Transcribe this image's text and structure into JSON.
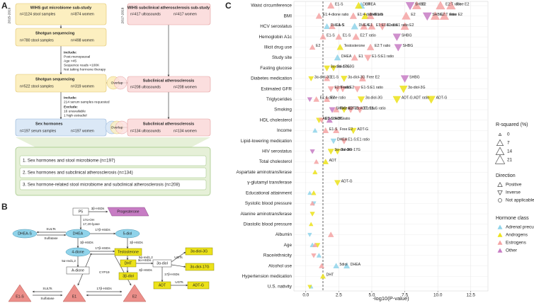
{
  "panel_a": {
    "label": "A",
    "periods": [
      "2015-2019",
      "2017-2019"
    ],
    "gut": {
      "title": "WIHS gut microbiome sub-study",
      "samples": "n=1124 stool samples",
      "women": "n=874 women"
    },
    "athero": {
      "title": "WIHS subclinical atherosclerosis sub-study",
      "samples": "n=417 ultrasounds",
      "women": "n=417 women"
    },
    "seq1": {
      "title": "Shotgun sequencing",
      "samples": "n=780 stool samples",
      "women": "n=498 women"
    },
    "criteria1": [
      "Include:",
      "Post-menopausal",
      "Age >45",
      "Sequence reads >100K",
      "Not taking hormone therapy"
    ],
    "seq2": {
      "title": "Shotgun sequencing",
      "samples": "n=522 stool samples",
      "women": "n=319 women"
    },
    "athero2": {
      "title": "Subclinical atherosclerosis",
      "samples": "n=208 ultrasounds",
      "women": "n=208 women"
    },
    "criteria2": [
      "Include:",
      "214 serum samples requested",
      "Exclude:",
      "16 unavailable",
      "1 high estradiol"
    ],
    "hormones": {
      "title": "Sex hormones",
      "samples": "n=197 serum samples",
      "women": "n=197 women"
    },
    "athero3": {
      "title": "Subclinical atherosclerosis",
      "samples": "n=134 ultrasounds",
      "women": "n=134 women"
    },
    "overlap": "Overlap",
    "analyses": [
      "1. Sex hormones and stool microbiome (n=197)",
      "2. Sex hormones and subclinical atherosclerosis (n=134)",
      "3. Sex hormone-related stool microbiome and subclinical atherosclerosis (n=208)"
    ]
  },
  "panel_b": {
    "label": "B",
    "nodes": [
      "P5",
      "Progesterone",
      "DHEA-S",
      "DHEA",
      "5-diol",
      "4-dione",
      "Testosterone",
      "A-dione",
      "DHT",
      "3α-diol",
      "3β-diol",
      "3α-diol-3G",
      "3α-diol-17G",
      "ADT",
      "ADT-G",
      "E1-S",
      "E1",
      "E2"
    ],
    "enzymes": [
      "3β-HSDs",
      "17α-OH",
      "17,20-lyase",
      "SULTs",
      "Sulfatase",
      "17β-HSDs",
      "3β-HSDs",
      "3β-HSDs",
      "17β-HSDs",
      "5α-red1,2",
      "5α-red1,2",
      "3α-HSDs",
      "3β-HSDs",
      "UGTs",
      "17β-HSDs",
      "UGTs",
      "CYP19",
      "SULTs",
      "Sulfatase",
      "17β-HSDs"
    ]
  },
  "chart_data": {
    "type": "scatter",
    "panel_label": "C",
    "categories": [
      "Waist circumference",
      "BMI",
      "HCV serostatus",
      "Hemoglobin A1c",
      "Illicit drug use",
      "Study site",
      "Fasting glucose",
      "Diabetes medication",
      "Estimated GFR",
      "Triglycerides",
      "Smoking",
      "HDL cholesterol",
      "Income",
      "Lipid-lowering medication",
      "HIV serostatus",
      "Total cholesterol",
      "Aspartate aminotransferase",
      "γ-glutamyl transferase",
      "Educational attainment",
      "Systolic blood pressure",
      "Alanine aminotransferase",
      "Diastolic blood pressure",
      "Albumin",
      "Age",
      "Race/ethnicity",
      "Alcohol use",
      "Hypertension medication",
      "U.S. nativity"
    ],
    "xlabel": "-log10(P-value)",
    "xlim": [
      -0.9,
      13.8
    ],
    "xticks": [
      {
        "value": 0,
        "label": "0.0"
      },
      2.5,
      {
        "value": 5,
        "label": "5.0"
      },
      7.5,
      {
        "value": 10,
        "label": "10.0"
      },
      12.5
    ],
    "reference_line": 1.3,
    "grid": true,
    "size_legend": {
      "title": "R-squared (%)",
      "values": [
        0,
        7,
        14,
        21
      ]
    },
    "direction_legend": {
      "title": "Direction",
      "names": [
        "Positive",
        "Inverse",
        "Not applicable"
      ]
    },
    "legend_title": "Hormone class",
    "series": [
      {
        "name": "Adrenal precursors",
        "color": "#8fd3ea",
        "y": [
          "Waist circumference",
          "HCV serostatus",
          "HCV serostatus",
          "Study site",
          "Lipid-lowering medication",
          "Alcohol use",
          "Alcohol use",
          "Age",
          "Albumin",
          "Race/ethnicity",
          "U.S. nativity",
          "Systolic blood pressure",
          "Educational attainment",
          "Income"
        ],
        "x": [
          4.2,
          1.6,
          3.7,
          2.4,
          2.1,
          2.3,
          3.1,
          0.5,
          0.3,
          1.0,
          0.4,
          0.6,
          0.3,
          0.7
        ],
        "sizes": [
          9,
          5,
          8,
          6,
          4,
          4,
          5,
          2,
          1,
          2,
          1,
          2,
          1,
          2
        ],
        "directions": [
          "Positive",
          "Positive",
          "Positive",
          "Positive",
          "Inverse",
          "Positive",
          "Positive",
          "Positive",
          "Inverse",
          "Positive",
          "Positive",
          "Inverse",
          "Positive",
          "Positive"
        ],
        "labels": [
          "DHEA",
          "DHEA-S",
          "DHEA",
          "DHEA",
          "DHEA",
          "5diol",
          "DHEA",
          null,
          null,
          null,
          null,
          null,
          null,
          null
        ]
      },
      {
        "name": "Androgens",
        "color": "#ece21a",
        "y": [
          "Waist circumference",
          "BMI",
          "Illicit drug use",
          "Fasting glucose",
          "Fasting glucose",
          "Diabetes medication",
          "Diabetes medication",
          "Estimated GFR",
          "Triglycerides",
          "Triglycerides",
          "Triglycerides",
          "Smoking",
          "HDL cholesterol",
          "Income",
          "HIV serostatus",
          "HIV serostatus",
          "Total cholesterol",
          "γ-glutamyl transferase",
          "Hypertension medication",
          "Educational attainment",
          "Alanine aminotransferase",
          "Diastolic blood pressure",
          "Age",
          "Aspartate aminotransferase",
          "U.S. nativity"
        ],
        "x": [
          4.0,
          4.5,
          2.6,
          1.6,
          2.1,
          0.4,
          2.9,
          7.4,
          4.2,
          6.9,
          9.5,
          2.9,
          1.0,
          3.6,
          1.9,
          2.4,
          1.5,
          2.4,
          1.3,
          0.6,
          0.5,
          0.4,
          0.9,
          0.7,
          0.3
        ],
        "sizes": [
          9,
          9,
          6,
          5,
          5,
          3,
          6,
          12,
          8,
          12,
          14,
          5,
          4,
          6,
          5,
          5,
          4,
          5,
          3,
          2,
          2,
          1,
          2,
          2,
          1
        ],
        "directions": [
          "Positive",
          "Positive",
          "Positive",
          "Inverse",
          "Inverse",
          "Inverse",
          "Inverse",
          "Inverse",
          "Inverse",
          "Inverse",
          "Inverse",
          "Inverse",
          "Inverse",
          "Inverse",
          "Inverse",
          "Inverse",
          "Positive",
          "Inverse",
          "Positive",
          "Positive",
          "Inverse",
          "Positive",
          "Inverse",
          "Positive",
          "Inverse"
        ],
        "labels": [
          "DHT",
          "DHT",
          "Testosterone",
          "3α-diol-17G",
          "3α-diol-3G",
          "3α-diol-3G",
          "3α-diol-3G",
          "3α-diol-3G",
          "3α-diol-3G",
          "ADT-G:ADT ratio",
          "ADT-G",
          "ADT-G:ADT ratio",
          "ADT-G:ADT ratio",
          "ADT-G",
          "3α-diol-3G",
          "3α-diol-17G",
          "ADT",
          "ADT-G",
          "DHT",
          null,
          null,
          null,
          null,
          null,
          null
        ]
      },
      {
        "name": "Estrogens",
        "color": "#f4a3a3",
        "y": [
          "Waist circumference",
          "Waist circumference",
          "Waist circumference",
          "Waist circumference",
          "BMI",
          "BMI",
          "BMI",
          "BMI",
          "BMI",
          "BMI",
          "HCV serostatus",
          "HCV serostatus",
          "HCV serostatus",
          "HCV serostatus",
          "HCV serostatus",
          "Hemoglobin A1c",
          "Hemoglobin A1c",
          "Hemoglobin A1c",
          "Illicit drug use",
          "Illicit drug use",
          "Study site",
          "Study site",
          "Diabetes medication",
          "Diabetes medication",
          "Estimated GFR",
          "Estimated GFR",
          "Estimated GFR",
          "Estimated GFR",
          "Triglycerides",
          "Triglycerides",
          "Smoking",
          "Smoking",
          "Smoking",
          "HDL cholesterol",
          "Income",
          "Income",
          "Lipid-lowering medication",
          "Total cholesterol",
          "Systolic blood pressure",
          "Age",
          "Albumin",
          "Race/ethnicity",
          "Alcohol use"
        ],
        "x": [
          1.9,
          8.4,
          10.2,
          11.0,
          1.0,
          3.6,
          4.9,
          7.6,
          9.8,
          10.5,
          2.0,
          4.4,
          5.0,
          5.8,
          7.5,
          1.3,
          2.5,
          3.8,
          0.5,
          4.9,
          3.7,
          4.7,
          1.6,
          4.3,
          1.9,
          2.4,
          2.8,
          3.9,
          0.8,
          1.6,
          2.3,
          3.4,
          4.1,
          1.2,
          1.5,
          2.3,
          2.9,
          0.8,
          0.5,
          0.7,
          1.9,
          0.6,
          1.2
        ],
        "sizes": [
          8,
          16,
          18,
          18,
          6,
          8,
          10,
          15,
          17,
          17,
          6,
          9,
          9,
          10,
          13,
          5,
          6,
          8,
          4,
          8,
          7,
          8,
          5,
          7,
          5,
          5,
          6,
          7,
          4,
          5,
          5,
          6,
          7,
          4,
          5,
          5,
          6,
          2,
          2,
          2,
          4,
          2,
          3
        ],
        "directions": [
          "Positive",
          "Positive",
          "Positive",
          "Positive",
          "Positive",
          "Positive",
          "Positive",
          "Positive",
          "Positive",
          "Positive",
          "Positive",
          "Positive",
          "Positive",
          "Inverse",
          "Positive",
          "Positive",
          "Positive",
          "Positive",
          "Positive",
          "Positive",
          "Positive",
          "Inverse",
          "Positive",
          "Positive",
          "Inverse",
          "Inverse",
          "Inverse",
          "Inverse",
          "Positive",
          "Positive",
          "Positive",
          "Inverse",
          "Inverse",
          "Inverse",
          "Positive",
          "Positive",
          "Inverse",
          "Positive",
          "Positive",
          "Positive",
          "Positive",
          "Inverse",
          "Positive"
        ],
        "labels": [
          "E1-S",
          "E2",
          "E2:T ratio",
          "Free E2",
          "E1:4-dione ratio",
          "E1:4-dione ratio",
          "E1-S",
          "E2",
          "E2:T ratio",
          "Free E2",
          "E1-S",
          "E1",
          "E1:E1-S ratio",
          "E1-S:E1 ratio",
          "E2",
          "E1-S",
          "E1-S",
          "E2:T ratio",
          "E2",
          "E2:T ratio",
          "E1",
          "E1-S:E1 ratio",
          "E1-S",
          "Free E2",
          "E2:T ratio",
          "Free E2",
          "E1",
          "E1-S:E1 ratio",
          "E1:4-dione ratio",
          "E2",
          "Free E2",
          "E1",
          "E1:E1-S ratio",
          "E1-S",
          "E1-S",
          "Free E2",
          "E1-S:E1 ratio",
          null,
          null,
          null,
          null,
          null,
          null
        ]
      },
      {
        "name": "Other",
        "color": "#c77cc4",
        "y": [
          "Waist circumference",
          "BMI",
          "Hemoglobin A1c",
          "Illicit drug use",
          "Diabetes medication",
          "Smoking",
          "HDL cholesterol",
          "Triglycerides",
          "HIV serostatus"
        ],
        "x": [
          7.9,
          9.2,
          6.9,
          7.0,
          7.5,
          2.0,
          1.8,
          0.3,
          0.5
        ],
        "sizes": [
          15,
          16,
          12,
          11,
          12,
          5,
          5,
          2,
          2
        ],
        "directions": [
          "Inverse",
          "Inverse",
          "Inverse",
          "Inverse",
          "Inverse",
          "Inverse",
          "Positive",
          "Inverse",
          "Inverse"
        ],
        "labels": [
          "SHBG",
          "SHBG",
          "SHBG",
          "SHBG",
          "SHBG",
          "SHBG",
          "SHBG",
          null,
          null
        ]
      }
    ]
  }
}
